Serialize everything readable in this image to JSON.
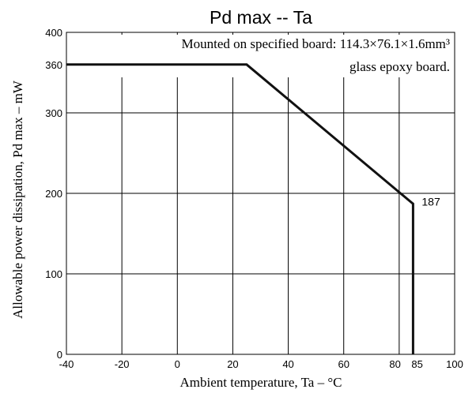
{
  "chart_data": {
    "type": "line",
    "title": "Pd max -- Ta",
    "xlabel": "Ambient temperature,  Ta – °C",
    "ylabel": "Allowable power dissipation,  Pd max – mW",
    "xlim": [
      -40,
      100
    ],
    "ylim": [
      0,
      400
    ],
    "x_ticks": [
      -40,
      -20,
      0,
      20,
      40,
      60,
      80,
      85,
      100
    ],
    "x_tick_labels": [
      "-40",
      "-20",
      "0",
      "20",
      "40",
      "60",
      "80",
      "85",
      "100"
    ],
    "y_ticks": [
      0,
      100,
      200,
      300,
      360,
      400
    ],
    "y_tick_labels": [
      "0",
      "100",
      "200",
      "300",
      "360",
      "400"
    ],
    "grid_x": [
      -40,
      -20,
      0,
      20,
      40,
      60,
      80,
      100
    ],
    "grid_y": [
      0,
      100,
      200,
      300,
      400
    ],
    "grid": true,
    "series": [
      {
        "x": [
          -40,
          25,
          85,
          85
        ],
        "y": [
          360,
          360,
          187,
          0
        ],
        "color": "#111111"
      }
    ],
    "annotations": [
      {
        "text": "187",
        "x": 85,
        "y": 187
      }
    ],
    "note_lines": [
      "Mounted on specified board: 114.3×76.1×1.6mm³",
      "glass epoxy board."
    ]
  }
}
